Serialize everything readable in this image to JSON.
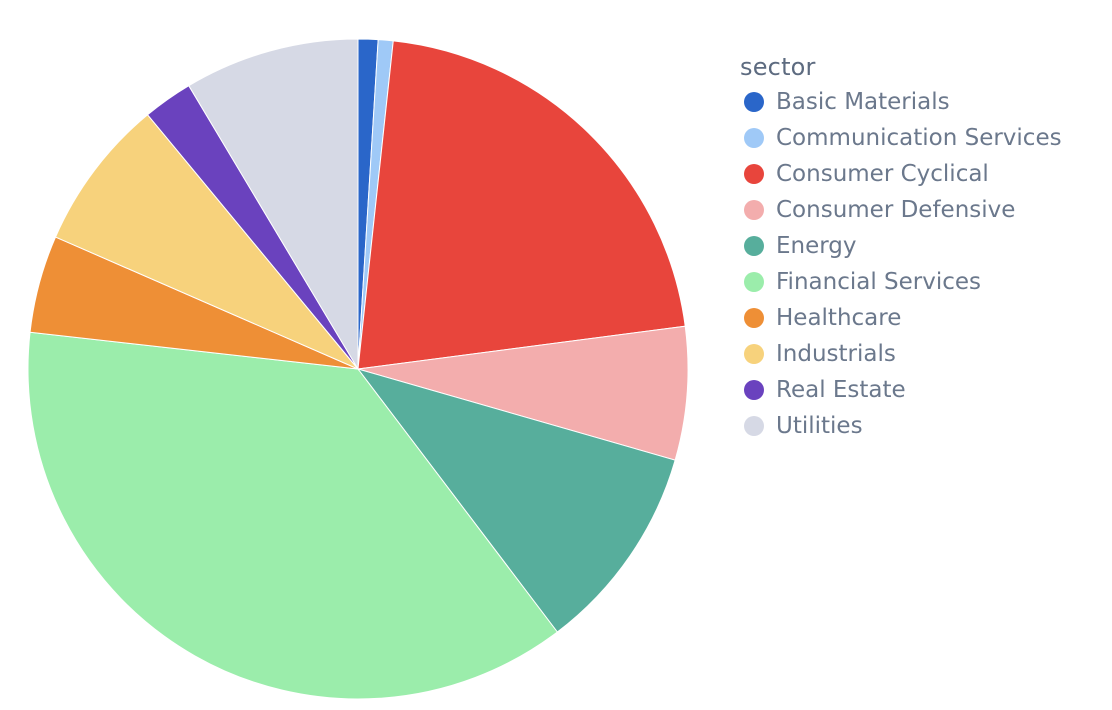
{
  "chart_data": {
    "type": "pie",
    "legend_title": "sector",
    "legend_placement": "right",
    "start_angle_deg": 0,
    "direction": "clockwise",
    "categories": [
      "Basic Materials",
      "Communication Services",
      "Consumer Cyclical",
      "Consumer Defensive",
      "Energy",
      "Financial Services",
      "Healthcare",
      "Industrials",
      "Real Estate",
      "Utilities"
    ],
    "values": [
      1.0,
      0.75,
      21.8,
      6.7,
      10.5,
      38.1,
      4.9,
      7.65,
      2.5,
      8.8
    ],
    "slice_order": [
      "Basic Materials",
      "Communication Services",
      "Consumer Cyclical",
      "Consumer Defensive",
      "Energy",
      "Financial Services",
      "Healthcare",
      "Industrials",
      "Real Estate",
      "Utilities"
    ],
    "colors": [
      "#2a66c9",
      "#9fc9f7",
      "#e8453c",
      "#f3adad",
      "#57ae9c",
      "#9bedab",
      "#ee8f36",
      "#f7d27c",
      "#6a42be",
      "#d6d9e5"
    ]
  }
}
